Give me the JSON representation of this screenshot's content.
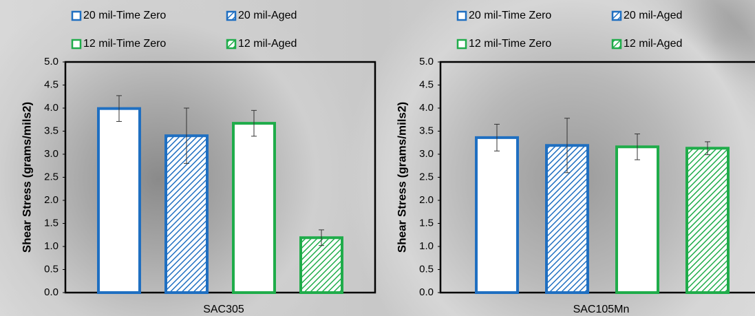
{
  "chart_data": [
    {
      "type": "bar",
      "categories": [
        "SAC305"
      ],
      "ylabel": "Shear Stress (grams/mils2)",
      "ylim": [
        0,
        5
      ],
      "yticks": [
        {
          "value": 0,
          "label": "0.0"
        },
        0.5,
        {
          "value": 1,
          "label": "1.0"
        },
        1.5,
        {
          "value": 2,
          "label": "2.0"
        },
        2.5,
        {
          "value": 3,
          "label": "3.0"
        },
        3.5,
        {
          "value": 4,
          "label": "4.0"
        },
        4.5,
        {
          "value": 5,
          "label": "5.0"
        }
      ],
      "series": [
        {
          "name": "20 mil-Time Zero",
          "color": "#1f6fc1",
          "hatch": false,
          "values": [
            3.99
          ],
          "errors": [
            0.28
          ]
        },
        {
          "name": "20 mil-Aged",
          "color": "#1f6fc1",
          "hatch": true,
          "values": [
            3.4
          ],
          "errors": [
            0.6
          ]
        },
        {
          "name": "12 mil-Time Zero",
          "color": "#1fac4a",
          "hatch": false,
          "values": [
            3.67
          ],
          "errors": [
            0.28
          ]
        },
        {
          "name": "12 mil-Aged",
          "color": "#1fac4a",
          "hatch": true,
          "values": [
            1.19
          ],
          "errors": [
            0.17
          ]
        }
      ]
    },
    {
      "type": "bar",
      "categories": [
        "SAC105Mn"
      ],
      "ylabel": "Shear Stress (grams/mils2)",
      "ylim": [
        0,
        5
      ],
      "yticks": [
        {
          "value": 0,
          "label": "0.0"
        },
        0.5,
        {
          "value": 1,
          "label": "1.0"
        },
        1.5,
        {
          "value": 2,
          "label": "2.0"
        },
        2.5,
        {
          "value": 3,
          "label": "3.0"
        },
        3.5,
        {
          "value": 4,
          "label": "4.0"
        },
        4.5,
        {
          "value": 5,
          "label": "5.0"
        }
      ],
      "series": [
        {
          "name": "20 mil-Time Zero",
          "color": "#1f6fc1",
          "hatch": false,
          "values": [
            3.36
          ],
          "errors": [
            0.29
          ]
        },
        {
          "name": "20 mil-Aged",
          "color": "#1f6fc1",
          "hatch": true,
          "values": [
            3.19
          ],
          "errors": [
            0.59
          ]
        },
        {
          "name": "12 mil-Time Zero",
          "color": "#1fac4a",
          "hatch": false,
          "values": [
            3.16
          ],
          "errors": [
            0.28
          ]
        },
        {
          "name": "12 mil-Aged",
          "color": "#1fac4a",
          "hatch": true,
          "values": [
            3.13
          ],
          "errors": [
            0.14
          ]
        }
      ]
    }
  ]
}
